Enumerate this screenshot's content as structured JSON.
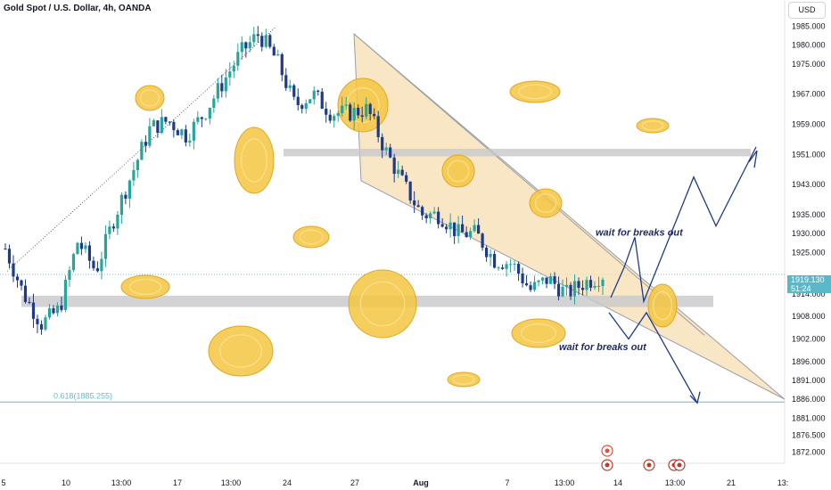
{
  "header": {
    "title": "Gold Spot / U.S. Dollar, 4h, OANDA",
    "currency": "USD"
  },
  "price_axis": {
    "labels": [
      "1985.000",
      "1980.000",
      "1975.000",
      "1967.000",
      "1959.000",
      "1951.000",
      "1943.000",
      "1935.000",
      "1930.000",
      "1925.000",
      "1914.000",
      "1908.000",
      "1902.000",
      "1896.000",
      "1891.000",
      "1886.000",
      "1881.000",
      "1876.500",
      "1872.000"
    ],
    "current_price": "1919.130",
    "countdown": "51:24"
  },
  "time_axis": {
    "labels": [
      "5",
      "10",
      "13:00",
      "17",
      "13:00",
      "24",
      "27",
      "Aug",
      "7",
      "13:00",
      "14",
      "13:00",
      "21",
      "13:"
    ]
  },
  "annotations": {
    "fib_label": "0.618(1885.255)",
    "upper_note": "wait for breaks out",
    "lower_note": "wait for breaks out"
  },
  "colors": {
    "bull": "#26a69a",
    "bear": "#1e3a8a",
    "wedge_fill": "#f7deb0",
    "zone": "#c8c8cc",
    "fib": "#6fb7c4",
    "arrow": "#1e3a8a",
    "coin": "#f5c542"
  },
  "chart_data": {
    "type": "candlestick",
    "symbol": "XAUUSD",
    "timeframe": "4h",
    "ylim": [
      1869,
      1992
    ],
    "x_ticks": [
      "5",
      "10",
      "13:00",
      "17",
      "13:00",
      "24",
      "27",
      "Aug",
      "7",
      "13:00",
      "14",
      "13:00",
      "21",
      "13:"
    ],
    "current_price": 1919.13,
    "fib_level": {
      "label": "0.618",
      "value": 1885.255
    },
    "resistance_zone": {
      "low": 1950.5,
      "high": 1952.5
    },
    "support_zone": {
      "low": 1910.5,
      "high": 1913.5
    },
    "close_path": [
      1926,
      1914,
      1906,
      1910,
      1928,
      1920,
      1934,
      1946,
      1958,
      1960,
      1956,
      1962,
      1970,
      1978,
      1983,
      1976,
      1964,
      1967,
      1962,
      1962,
      1963,
      1952,
      1943,
      1935,
      1935,
      1930,
      1930,
      1923,
      1922,
      1915,
      1918,
      1914,
      1917,
      1919
    ]
  }
}
